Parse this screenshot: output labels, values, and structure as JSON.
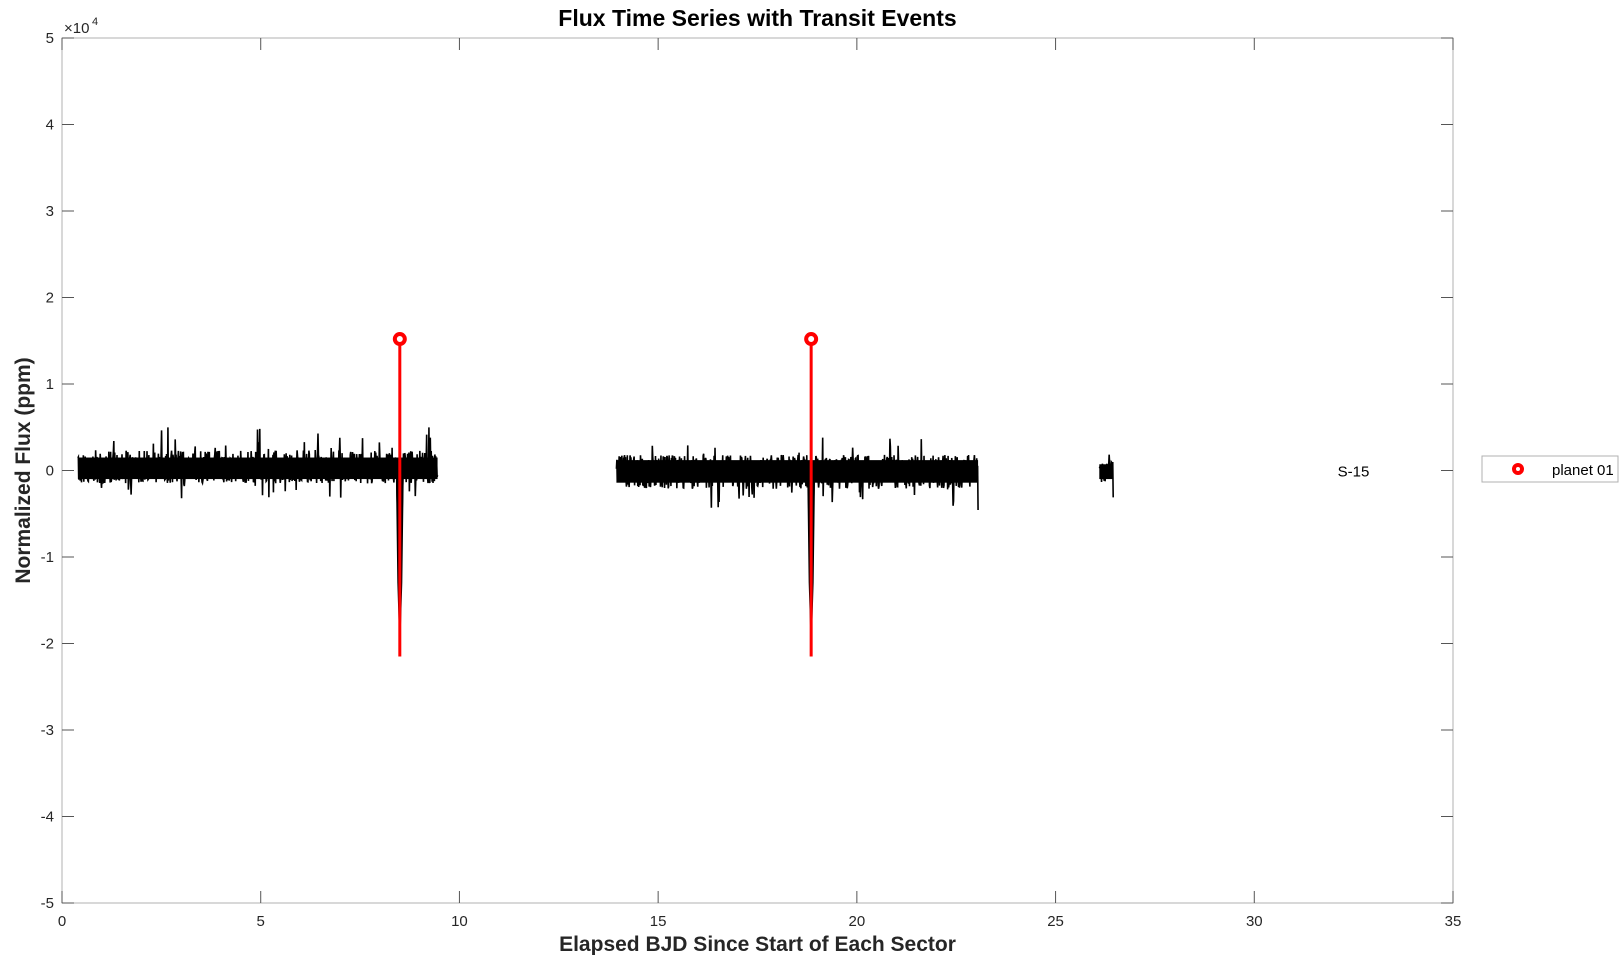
{
  "chart_data": {
    "type": "line",
    "title": "Flux Time Series with Transit Events",
    "xlabel": "Elapsed BJD Since Start of Each Sector",
    "ylabel": "Normalized Flux (ppm)",
    "xlim": [
      0,
      35
    ],
    "ylim": [
      -50000,
      50000
    ],
    "y_exponent_label": "×10",
    "y_exponent_power": "4",
    "x_ticks": [
      "0",
      "5",
      "10",
      "15",
      "20",
      "25",
      "30",
      "35"
    ],
    "y_ticks": [
      "-5",
      "-4",
      "-3",
      "-2",
      "-1",
      "0",
      "1",
      "2",
      "3",
      "4",
      "5"
    ],
    "grid": false,
    "legend_placement": "right, outside plot",
    "series": [
      {
        "name": "",
        "color": "#000000",
        "kind": "flux",
        "segments": [
          {
            "x_start": 0.4,
            "x_end": 9.45,
            "noise_low": -3300,
            "noise_high": 5200
          },
          {
            "x_start": 13.95,
            "x_end": 23.05,
            "noise_low": -4700,
            "noise_high": 4000
          },
          {
            "x_start": 26.1,
            "x_end": 26.45,
            "noise_low": -3300,
            "noise_high": 2400
          }
        ],
        "transit_dips": [
          {
            "x": 8.5,
            "min_flux": -18500
          },
          {
            "x": 18.85,
            "min_flux": -18500
          }
        ]
      },
      {
        "name": "planet 01",
        "color": "#ff0000",
        "kind": "transit-markers",
        "markers": [
          {
            "x": 8.5,
            "y_top": 15200,
            "y_bottom": -21500
          },
          {
            "x": 18.85,
            "y_top": 15200,
            "y_bottom": -21500
          }
        ]
      }
    ],
    "annotations": [
      {
        "text": "S-15",
        "x": 32.4,
        "y": 0
      }
    ]
  }
}
